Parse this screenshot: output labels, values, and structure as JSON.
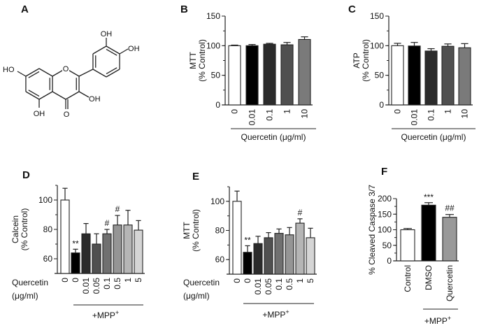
{
  "structure": {
    "letter": "A",
    "atoms": [
      "HO",
      "O",
      "O",
      "OH",
      "OH",
      "OH",
      "OH"
    ]
  },
  "chart_data": [
    {
      "id": "B",
      "letter": "B",
      "type": "bar",
      "ylabel": [
        "MTT",
        "(% Control)"
      ],
      "categories": [
        "0",
        "0.01",
        "0.1",
        "1",
        "10"
      ],
      "values": [
        100,
        100,
        102.5,
        101.5,
        110.5
      ],
      "errors": [
        1,
        2,
        1.5,
        4,
        4.5
      ],
      "colors": [
        "#ffffff",
        "#000000",
        "#2b2b2b",
        "#505050",
        "#7a7a7a"
      ],
      "annotations": [
        "",
        "",
        "",
        "",
        ""
      ],
      "ylim": [
        0,
        150
      ],
      "yticks": [
        0,
        50,
        100,
        150
      ],
      "xlabel": "Quercetin (μg/ml)"
    },
    {
      "id": "C",
      "letter": "C",
      "type": "bar",
      "ylabel": [
        "ATP",
        "(% Control)"
      ],
      "categories": [
        "0",
        "0.01",
        "0.1",
        "1",
        "10"
      ],
      "values": [
        100,
        99.5,
        91,
        99,
        96.5
      ],
      "errors": [
        4,
        6,
        4,
        4,
        7
      ],
      "colors": [
        "#ffffff",
        "#000000",
        "#2b2b2b",
        "#505050",
        "#7a7a7a"
      ],
      "annotations": [
        "",
        "",
        "",
        "",
        ""
      ],
      "ylim": [
        0,
        150
      ],
      "yticks": [
        0,
        50,
        100,
        150
      ],
      "xlabel": "Quercetin (μg/ml)"
    },
    {
      "id": "D",
      "letter": "D",
      "type": "bar",
      "ylabel": [
        "Calcein",
        "(% Control)"
      ],
      "categories": [
        "0",
        "0",
        "0.01",
        "0.05",
        "0.1",
        "0.5",
        "1",
        "5"
      ],
      "values": [
        100,
        64,
        77,
        70,
        77,
        83,
        83,
        79.5
      ],
      "errors": [
        8,
        2.5,
        7,
        7,
        3,
        6.5,
        10,
        6.5
      ],
      "colors": [
        "#ffffff",
        "#000000",
        "#2b2b2b",
        "#505050",
        "#707070",
        "#959595",
        "#b5b5b5",
        "#d5d5d5"
      ],
      "annotations": [
        "",
        "**",
        "",
        "",
        "#",
        "#",
        "",
        ""
      ],
      "ylim": [
        50,
        110
      ],
      "yticks": [
        60,
        80,
        100
      ],
      "row_label": [
        "Quercetin",
        "(μg/ml)"
      ],
      "group_label": "+MPP",
      "group_label_sup": "+"
    },
    {
      "id": "E",
      "letter": "E",
      "type": "bar",
      "ylabel": [
        "MTT",
        "(% Control)"
      ],
      "categories": [
        "0",
        "0",
        "0.01",
        "0.05",
        "0.1",
        "0.5",
        "1",
        "5"
      ],
      "values": [
        100,
        65,
        71,
        75,
        78,
        77,
        85,
        75
      ],
      "errors": [
        7,
        4.5,
        5,
        3.5,
        3,
        5,
        3,
        6.5
      ],
      "colors": [
        "#ffffff",
        "#000000",
        "#2b2b2b",
        "#505050",
        "#707070",
        "#959595",
        "#b5b5b5",
        "#d5d5d5"
      ],
      "annotations": [
        "",
        "**",
        "",
        "",
        "",
        "",
        "#",
        ""
      ],
      "ylim": [
        50,
        110
      ],
      "yticks": [
        60,
        80,
        100
      ],
      "row_label": [
        "Quercetin",
        "(μg/ml)"
      ],
      "group_label": "+MPP",
      "group_label_sup": "+"
    },
    {
      "id": "F",
      "letter": "F",
      "type": "bar",
      "ylabel": [
        "% Cleaved Caspase 3/7"
      ],
      "categories": [
        "Control",
        "DMSO",
        "Quercetin"
      ],
      "values": [
        100,
        179,
        140
      ],
      "errors": [
        4,
        8,
        9
      ],
      "colors": [
        "#ffffff",
        "#000000",
        "#999999"
      ],
      "annotations": [
        "",
        "***",
        "##"
      ],
      "ylim": [
        0,
        200
      ],
      "yticks": [
        0,
        50,
        100,
        150,
        200
      ],
      "group_label": "+MPP",
      "group_label_sup": "+"
    }
  ]
}
